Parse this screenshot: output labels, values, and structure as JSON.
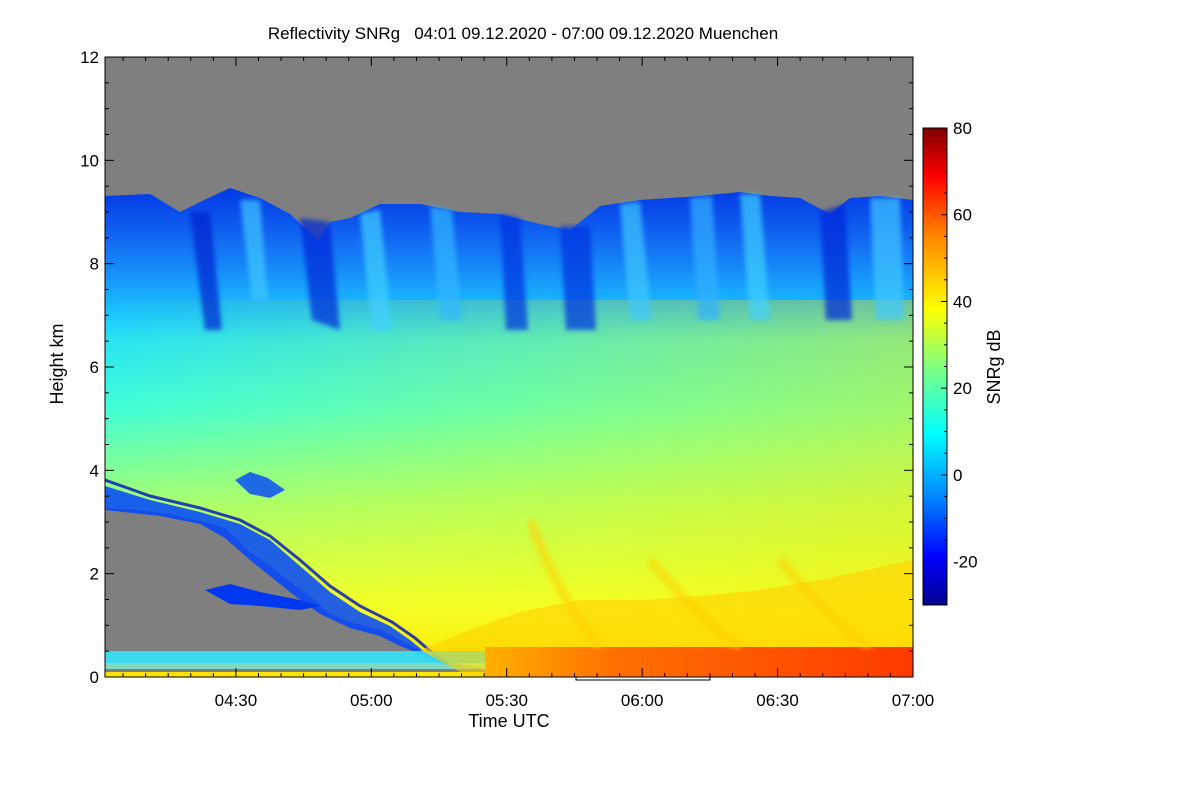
{
  "chart_data": {
    "type": "heatmap",
    "title": "Reflectivity SNRg   04:01 09.12.2020 - 07:00 09.12.2020 Muenchen",
    "xlabel": "Time UTC",
    "ylabel": "Height km",
    "xlim": [
      "04:01",
      "07:00"
    ],
    "ylim": [
      0,
      12
    ],
    "x_ticks": [
      "04:30",
      "05:00",
      "05:30",
      "06:00",
      "06:30",
      "07:00"
    ],
    "y_ticks": [
      "0",
      "2",
      "4",
      "6",
      "8",
      "10",
      "12"
    ],
    "colorbar": {
      "label": "SNRg dB",
      "range": [
        -30,
        80
      ],
      "ticks": [
        "-20",
        "0",
        "20",
        "40",
        "60",
        "80"
      ]
    },
    "colors": {
      "no_data": "#7f7f7f",
      "colormap": [
        "#00008f",
        "#0000ff",
        "#0080ff",
        "#00ffff",
        "#80ff80",
        "#ffff00",
        "#ff8000",
        "#ff0000",
        "#800000"
      ]
    },
    "features": {
      "cloud_top_km": 9.2,
      "lower_dry_layer_top_km": 3.3,
      "melting_layer_start_time": "05:20"
    }
  }
}
